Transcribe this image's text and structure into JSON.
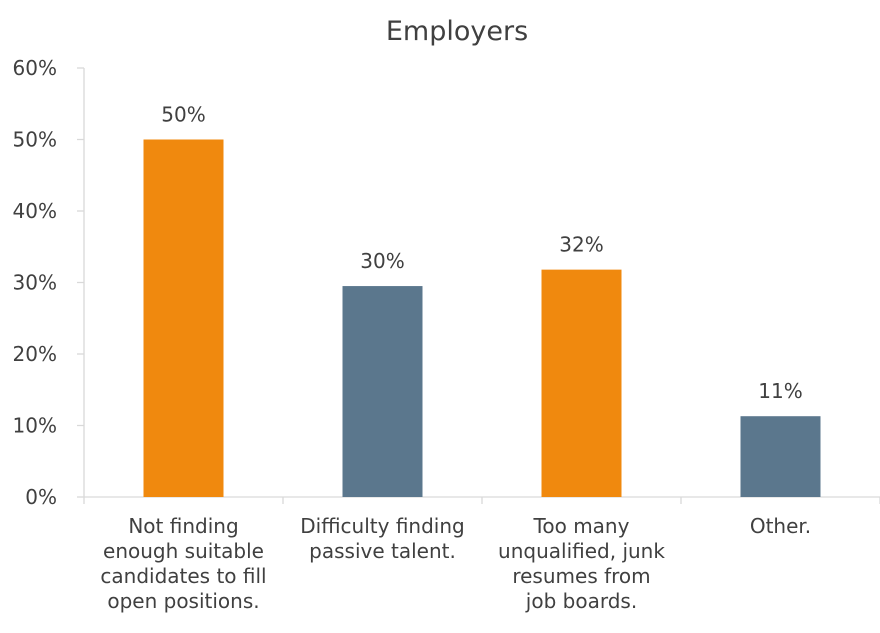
{
  "chart_data": {
    "type": "bar",
    "title": "Employers",
    "xlabel": "",
    "ylabel": "",
    "ylim": [
      0,
      0.6
    ],
    "yticks": [
      "0%",
      "10%",
      "20%",
      "30%",
      "40%",
      "50%",
      "60%"
    ],
    "grid": false,
    "categories": [
      [
        "Not finding",
        "enough suitable",
        "candidates to fill",
        "open positions."
      ],
      [
        "Difficulty finding",
        "passive talent."
      ],
      [
        "Too many",
        "unqualified, junk",
        "resumes from",
        "job boards."
      ],
      [
        "Other."
      ]
    ],
    "values": [
      0.5,
      0.295,
      0.318,
      0.113
    ],
    "data_labels": [
      "50%",
      "30%",
      "32%",
      "11%"
    ],
    "bar_colors": [
      "#F0890E",
      "#5B778D",
      "#F0890E",
      "#5B778D"
    ],
    "axis_color": "#D9D9D9"
  }
}
